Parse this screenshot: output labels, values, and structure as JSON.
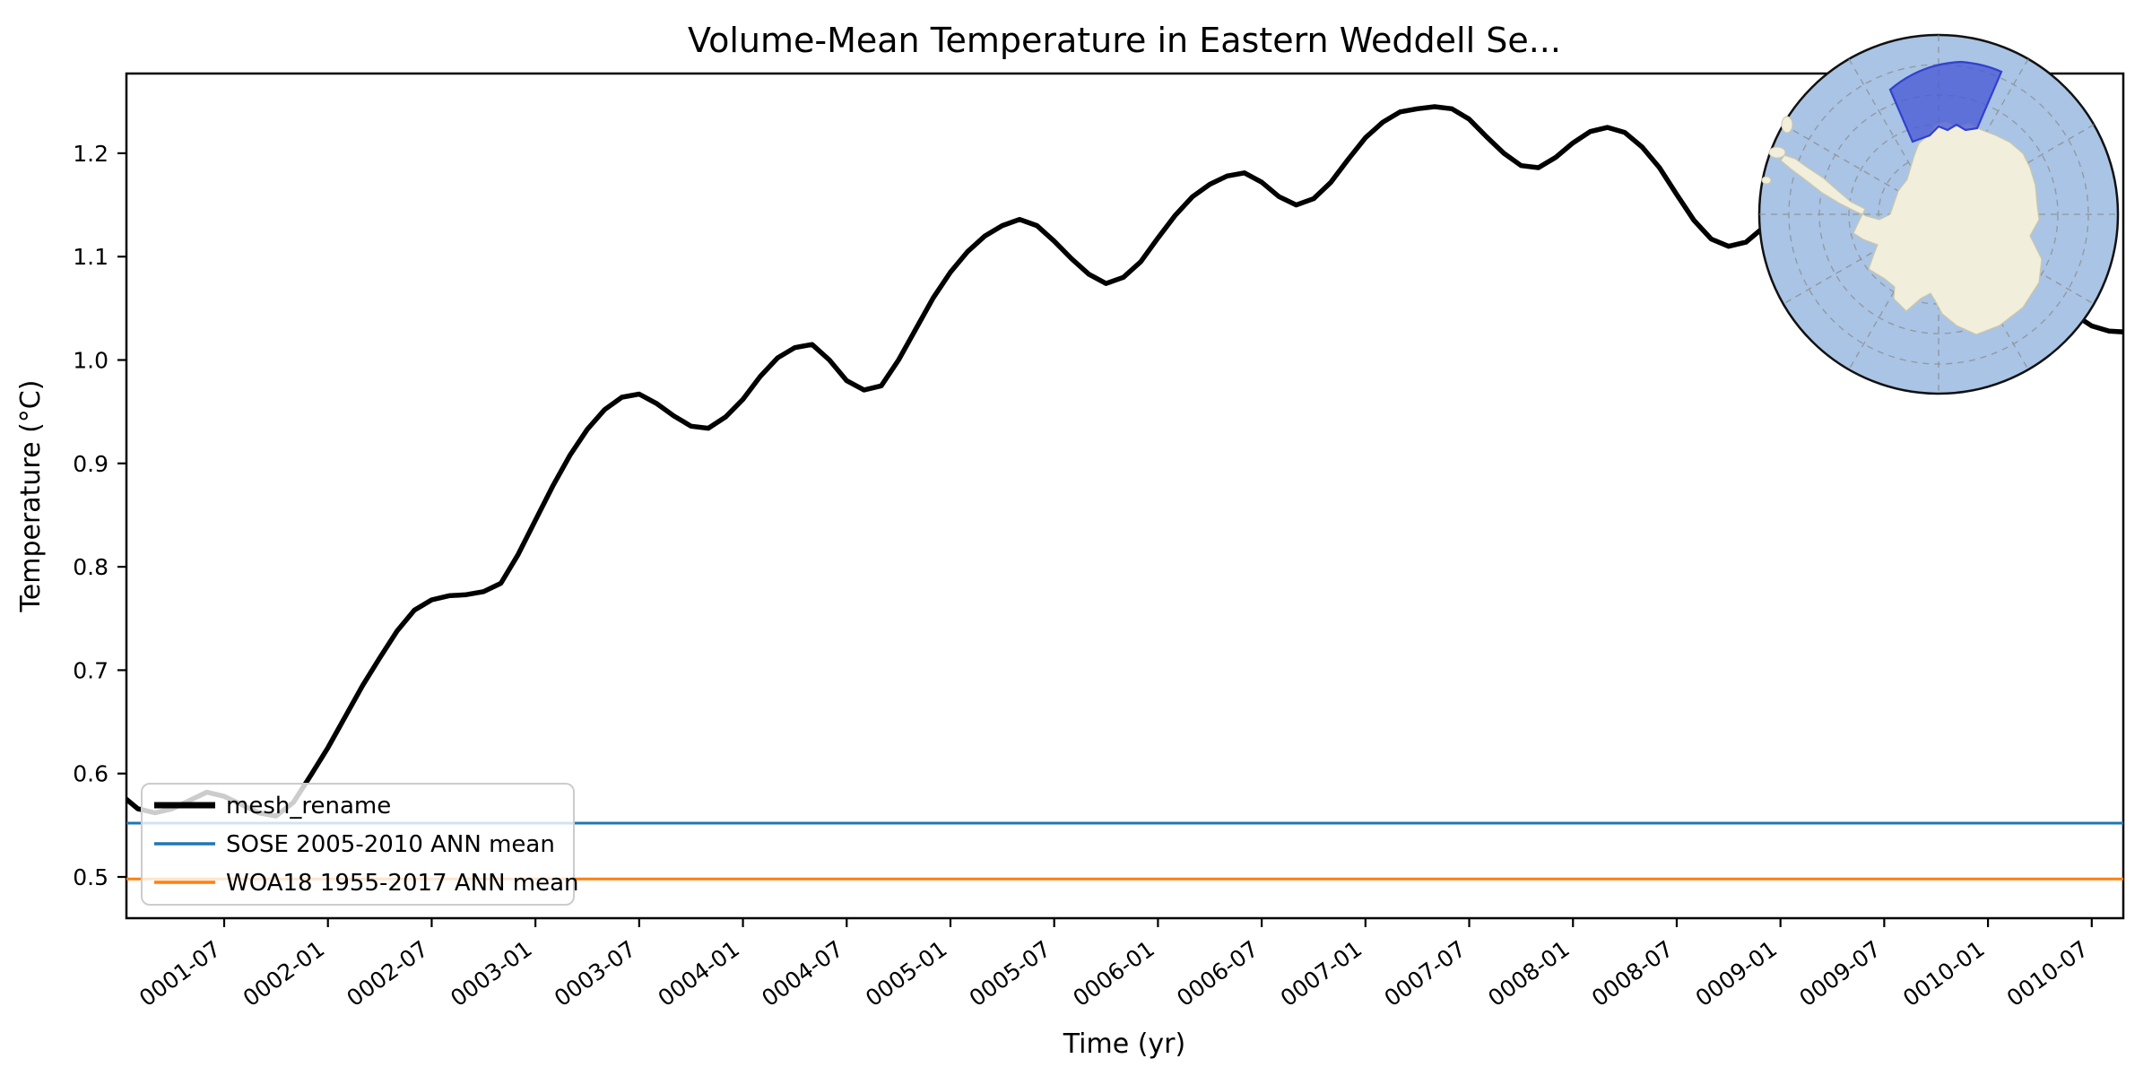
{
  "figure_title": "Volume-Mean Temperature in Eastern Weddell Se...",
  "legend": [
    {
      "label": "mesh_rename",
      "color": "#000000",
      "line_width": 7
    },
    {
      "label": "SOSE 2005-2010 ANN mean",
      "color": "#1f77b4",
      "line_width": 3.5
    },
    {
      "label": "WOA18 1955-2017 ANN mean",
      "color": "#ff7f0e",
      "line_width": 3.5
    }
  ],
  "chart_data": {
    "type": "line",
    "title": "Volume-Mean Temperature in Eastern Weddell Se...",
    "xlabel": "Time (yr)",
    "ylabel": "Temperature (°C)",
    "x_start": "0001-01",
    "x_step": "1 month",
    "x_tick_labels": [
      "0001-07",
      "0002-01",
      "0002-07",
      "0003-01",
      "0003-07",
      "0004-01",
      "0004-07",
      "0005-01",
      "0005-07",
      "0006-01",
      "0006-07",
      "0007-01",
      "0007-07",
      "0008-01",
      "0008-07",
      "0009-01",
      "0009-07",
      "0010-01",
      "0010-07"
    ],
    "x_tick_rotation_deg": -36,
    "y_ticks": [
      0.5,
      0.6,
      0.7,
      0.8,
      0.9,
      1.0,
      1.1,
      1.2
    ],
    "ylim": [
      0.46,
      1.277
    ],
    "xlim_months_since_start": [
      0.3,
      115.9
    ],
    "grid": false,
    "legend_position": "lower left",
    "series": [
      {
        "name": "mesh_rename",
        "type": "line",
        "color": "#000000",
        "values": [
          0.58,
          0.566,
          0.562,
          0.566,
          0.574,
          0.582,
          0.578,
          0.57,
          0.562,
          0.559,
          0.572,
          0.598,
          0.625,
          0.655,
          0.685,
          0.712,
          0.738,
          0.758,
          0.768,
          0.772,
          0.773,
          0.776,
          0.784,
          0.812,
          0.845,
          0.878,
          0.908,
          0.933,
          0.952,
          0.964,
          0.967,
          0.958,
          0.946,
          0.936,
          0.934,
          0.945,
          0.962,
          0.984,
          1.002,
          1.012,
          1.015,
          1.0,
          0.98,
          0.971,
          0.975,
          1.0,
          1.03,
          1.06,
          1.085,
          1.105,
          1.12,
          1.13,
          1.136,
          1.13,
          1.115,
          1.098,
          1.083,
          1.074,
          1.08,
          1.095,
          1.118,
          1.14,
          1.158,
          1.17,
          1.178,
          1.181,
          1.172,
          1.158,
          1.15,
          1.156,
          1.172,
          1.194,
          1.215,
          1.23,
          1.24,
          1.243,
          1.245,
          1.243,
          1.233,
          1.216,
          1.2,
          1.188,
          1.186,
          1.196,
          1.21,
          1.221,
          1.225,
          1.22,
          1.206,
          1.186,
          1.16,
          1.135,
          1.117,
          1.11,
          1.114,
          1.128,
          1.148,
          1.163,
          1.173,
          1.18,
          1.177,
          1.166,
          1.155,
          1.148,
          1.152,
          1.162,
          1.172,
          1.176,
          1.17,
          1.158,
          1.13,
          1.092,
          1.06,
          1.044,
          1.033,
          1.028,
          1.027
        ]
      },
      {
        "name": "SOSE 2005-2010 ANN mean",
        "type": "hline",
        "value": 0.552,
        "color": "#1f77b4"
      },
      {
        "name": "WOA18 1955-2017 ANN mean",
        "type": "hline",
        "value": 0.498,
        "color": "#ff7f0e"
      }
    ],
    "inset_map": {
      "projection": "south polar stereographic",
      "highlighted_region": "Eastern Weddell Sea sector",
      "ocean_color": "#a9c4e5",
      "land_color": "#f1eedb",
      "land_edge_color": "#cdc7a8",
      "region_fill": "#4a5cd5",
      "region_edge": "#3240cf",
      "graticule_color": "#8f8f8f",
      "border_color": "#111111"
    }
  }
}
